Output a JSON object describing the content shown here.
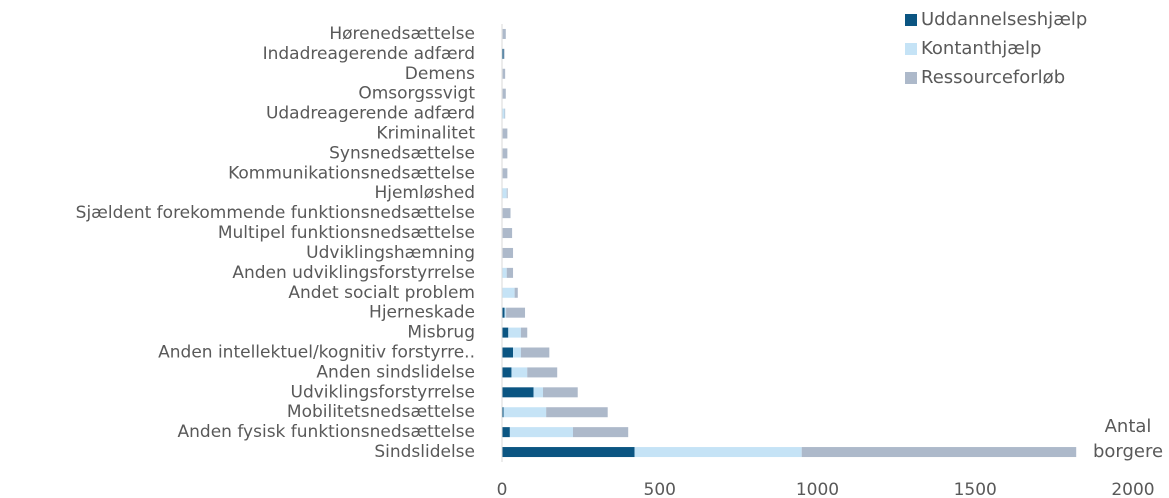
{
  "chart_data": {
    "type": "stacked-barh",
    "categories": [
      "Hørenedsættelse",
      "Indadreagerende adfærd",
      "Demens",
      "Omsorgssvigt",
      "Udadreagerende adfærd",
      "Kriminalitet",
      "Synsnedsættelse",
      "Kommunikationsnedsættelse",
      "Hjemløshed",
      "Sjældent forekommende funktionsnedsættelse",
      "Multipel funktionsnedsættelse",
      "Udviklingshæmning",
      "Anden udviklingsforstyrrelse",
      "Andet socialt problem",
      "Hjerneskade",
      "Misbrug",
      "Anden intellektuel/kognitiv forstyrre..",
      "Anden sindslidelse",
      "Udviklingsforstyrrelse",
      "Mobilitetsnedsættelse",
      "Anden fysisk funktionsnedsættelse",
      "Sindslidelse"
    ],
    "series": [
      {
        "name": "Uddannelseshjælp",
        "color": "#0b5582",
        "values": [
          0,
          5,
          0,
          0,
          0,
          0,
          0,
          0,
          0,
          0,
          0,
          0,
          0,
          0,
          8,
          20,
          35,
          30,
          100,
          5,
          25,
          420
        ]
      },
      {
        "name": "Kontanthjælp",
        "color": "#c5e3f6",
        "values": [
          2,
          0,
          2,
          2,
          8,
          2,
          2,
          2,
          15,
          2,
          2,
          2,
          15,
          40,
          5,
          40,
          25,
          50,
          30,
          135,
          200,
          530
        ]
      },
      {
        "name": "Ressourceforløb",
        "color": "#adb9ca",
        "values": [
          10,
          3,
          8,
          10,
          2,
          15,
          15,
          15,
          3,
          25,
          30,
          33,
          20,
          10,
          60,
          20,
          90,
          95,
          110,
          195,
          175,
          870
        ]
      }
    ],
    "xlim": [
      0,
      2000
    ],
    "xticks": [
      0,
      500,
      1000,
      1500,
      2000
    ],
    "x_label": "Antal borgere",
    "legend": "top-right"
  }
}
